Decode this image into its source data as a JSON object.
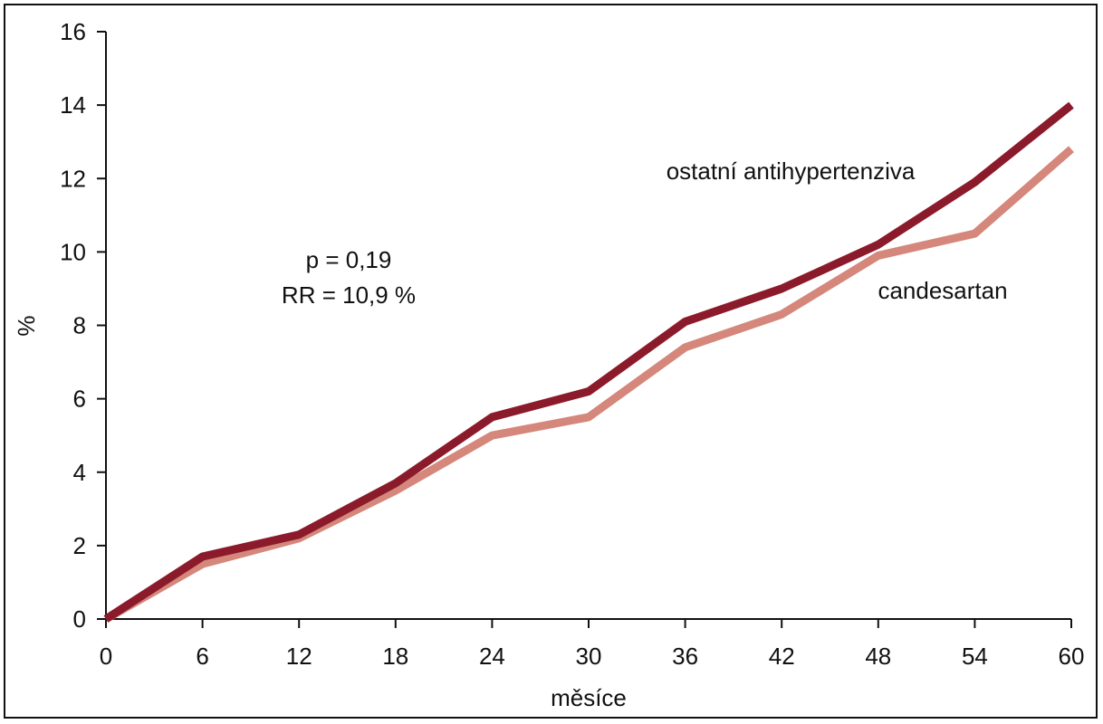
{
  "chart_data": {
    "type": "line",
    "xlabel": "měsíce",
    "ylabel": "%",
    "x": [
      0,
      6,
      12,
      18,
      24,
      30,
      36,
      42,
      48,
      54,
      60
    ],
    "xlim": [
      0,
      60
    ],
    "ylim": [
      0,
      16
    ],
    "x_ticks": [
      "0",
      "6",
      "12",
      "18",
      "24",
      "30",
      "36",
      "42",
      "48",
      "54",
      "60"
    ],
    "y_ticks": [
      "0",
      "2",
      "4",
      "6",
      "8",
      "10",
      "12",
      "14",
      "16"
    ],
    "grid": false,
    "series": [
      {
        "name": "ostatní antihypertenziva",
        "color": "#8B1A2B",
        "values": [
          0,
          1.7,
          2.3,
          3.7,
          5.5,
          6.2,
          8.1,
          9.0,
          10.2,
          11.9,
          14.0
        ]
      },
      {
        "name": "candesartan",
        "color": "#D4877A",
        "values": [
          0,
          1.5,
          2.2,
          3.5,
          5.0,
          5.5,
          7.4,
          8.3,
          9.9,
          10.5,
          12.8
        ]
      }
    ],
    "annotations": {
      "p_value": "p = 0,19",
      "rr": "RR = 10,9 %"
    }
  }
}
